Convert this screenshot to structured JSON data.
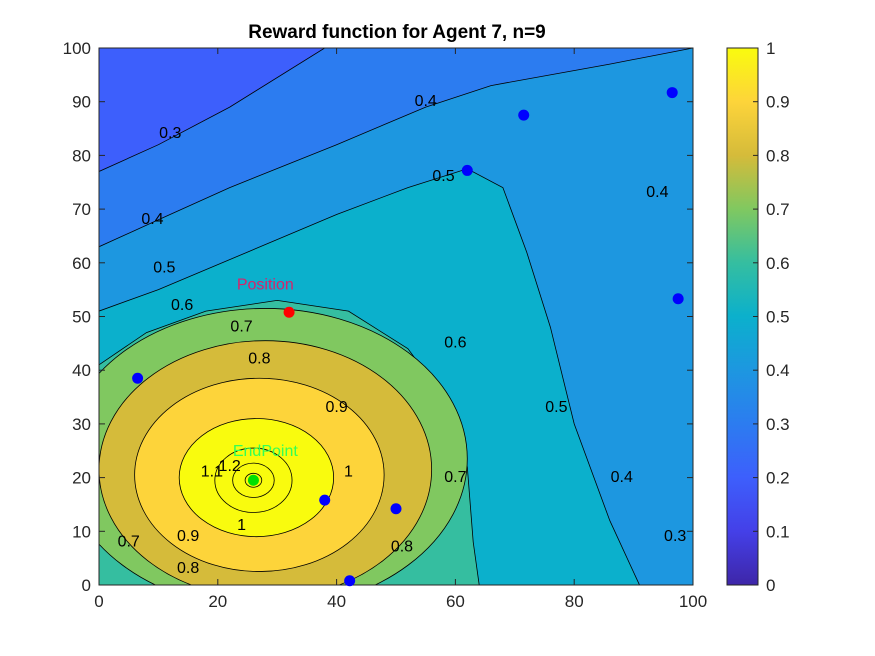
{
  "chart_data": {
    "type": "contour",
    "title": "Reward function for Agent 7, n=9",
    "xlabel": "",
    "ylabel": "",
    "xlim": [
      0,
      100
    ],
    "ylim": [
      0,
      100
    ],
    "x_ticks": [
      "0",
      "20",
      "40",
      "60",
      "80",
      "100"
    ],
    "y_ticks": [
      "0",
      "10",
      "20",
      "30",
      "40",
      "50",
      "60",
      "70",
      "80",
      "90",
      "100"
    ],
    "colorbar": {
      "colormap": "parula",
      "range": [
        0,
        1
      ],
      "ticks": [
        "0",
        "0.1",
        "0.2",
        "0.3",
        "0.4",
        "0.5",
        "0.6",
        "0.7",
        "0.8",
        "0.9",
        "1"
      ]
    },
    "contour_levels": [
      0.3,
      0.4,
      0.5,
      0.6,
      0.7,
      0.8,
      0.9,
      1,
      1.1,
      1.2
    ],
    "contour_labels": [
      {
        "text": "0.3",
        "x": 12,
        "y": 84
      },
      {
        "text": "0.4",
        "x": 55,
        "y": 90
      },
      {
        "text": "0.4",
        "x": 9,
        "y": 68
      },
      {
        "text": "0.5",
        "x": 58,
        "y": 76
      },
      {
        "text": "0.5",
        "x": 11,
        "y": 59
      },
      {
        "text": "0.6",
        "x": 14,
        "y": 52
      },
      {
        "text": "0.7",
        "x": 24,
        "y": 48
      },
      {
        "text": "0.8",
        "x": 27,
        "y": 42
      },
      {
        "text": "0.9",
        "x": 40,
        "y": 33
      },
      {
        "text": "1",
        "x": 42,
        "y": 21
      },
      {
        "text": "1.1",
        "x": 19,
        "y": 21
      },
      {
        "text": "1.2",
        "x": 22,
        "y": 22
      },
      {
        "text": "1",
        "x": 24,
        "y": 11
      },
      {
        "text": "0.9",
        "x": 15,
        "y": 9
      },
      {
        "text": "0.8",
        "x": 15,
        "y": 3
      },
      {
        "text": "0.7",
        "x": 5,
        "y": 8
      },
      {
        "text": "0.6",
        "x": 60,
        "y": 45
      },
      {
        "text": "0.7",
        "x": 60,
        "y": 20
      },
      {
        "text": "0.8",
        "x": 51,
        "y": 7
      },
      {
        "text": "0.5",
        "x": 77,
        "y": 33
      },
      {
        "text": "0.4",
        "x": 88,
        "y": 20
      },
      {
        "text": "0.4",
        "x": 94,
        "y": 73
      },
      {
        "text": "0.3",
        "x": 97,
        "y": 9
      }
    ],
    "points": [
      {
        "name": "agent",
        "x": 6.5,
        "y": 38.5,
        "color": "#0000ff"
      },
      {
        "name": "agent",
        "x": 38,
        "y": 15.8,
        "color": "#0000ff"
      },
      {
        "name": "agent",
        "x": 50,
        "y": 14.2,
        "color": "#0000ff"
      },
      {
        "name": "agent",
        "x": 42.2,
        "y": 0.8,
        "color": "#0000ff"
      },
      {
        "name": "agent",
        "x": 62,
        "y": 77.2,
        "color": "#0000ff"
      },
      {
        "name": "agent",
        "x": 71.5,
        "y": 87.5,
        "color": "#0000ff"
      },
      {
        "name": "agent",
        "x": 96.5,
        "y": 91.7,
        "color": "#0000ff"
      },
      {
        "name": "agent",
        "x": 97.5,
        "y": 53.3,
        "color": "#0000ff"
      },
      {
        "name": "Position",
        "x": 32,
        "y": 50.8,
        "color": "#ff0000"
      },
      {
        "name": "EndPoint",
        "x": 26,
        "y": 19.5,
        "color": "#00e000"
      }
    ],
    "text_annotations": [
      {
        "text": "Position",
        "x": 28,
        "y": 55,
        "color": "#d6246b"
      },
      {
        "text": "EndPoint",
        "x": 28,
        "y": 24,
        "color": "#33ff55"
      }
    ]
  }
}
